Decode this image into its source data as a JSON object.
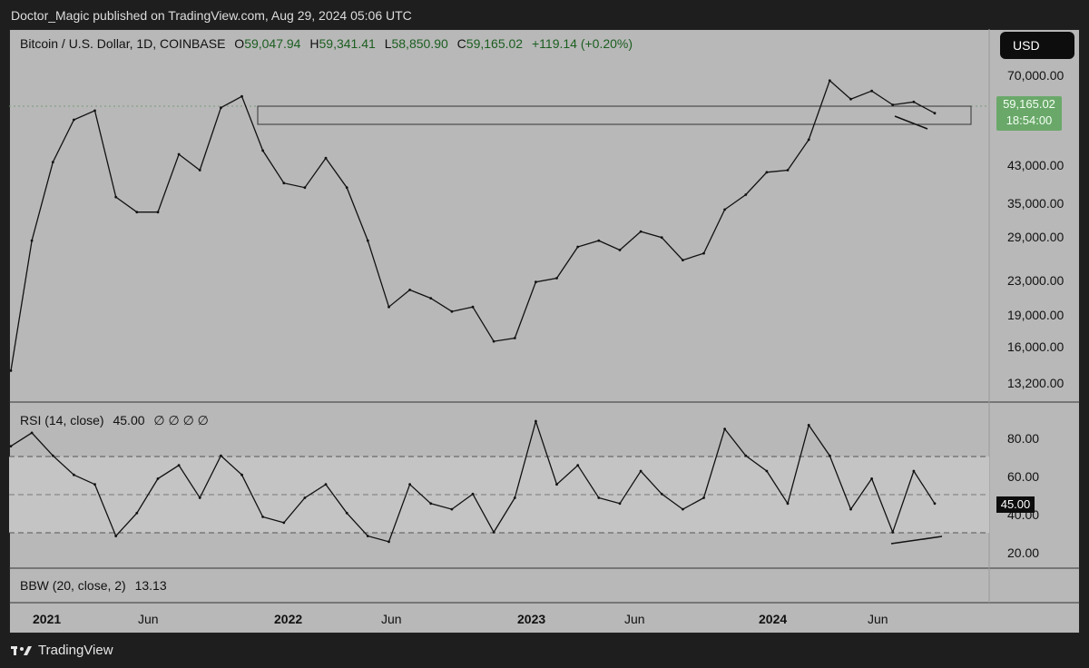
{
  "header": {
    "publisher_text": "Doctor_Magic published on TradingView.com, Aug 29, 2024 05:06 UTC"
  },
  "legend": {
    "symbol": "Bitcoin / U.S. Dollar, 1D, COINBASE",
    "o_label": "O",
    "o": "59,047.94",
    "h_label": "H",
    "h": "59,341.41",
    "l_label": "L",
    "l": "58,850.90",
    "c_label": "C",
    "c": "59,165.02",
    "change": "+119.14 (+0.20%)"
  },
  "currency_button": "USD",
  "price_tag": {
    "price": "59,165.02",
    "countdown": "18:54:00"
  },
  "price_axis": [
    "70,000.00",
    "43,000.00",
    "35,000.00",
    "29,000.00",
    "23,000.00",
    "19,000.00",
    "16,000.00",
    "13,200.00"
  ],
  "rsi": {
    "legend": "RSI (14, close)",
    "value": "45.00",
    "na": "∅ ∅ ∅ ∅",
    "axis": [
      "80.00",
      "60.00",
      "40.00",
      "20.00"
    ],
    "tag": "45.00"
  },
  "bbw": {
    "legend": "BBW (20, close, 2)",
    "value": "13.13"
  },
  "time_axis": [
    {
      "label": "2021",
      "year": true
    },
    {
      "label": "Jun",
      "year": false
    },
    {
      "label": "2022",
      "year": true
    },
    {
      "label": "Jun",
      "year": false
    },
    {
      "label": "2023",
      "year": true
    },
    {
      "label": "Jun",
      "year": false
    },
    {
      "label": "2024",
      "year": true
    },
    {
      "label": "Jun",
      "year": false
    }
  ],
  "footer": {
    "brand": "TradingView"
  },
  "colors": {
    "background": "#b8b8b8",
    "line": "#111111",
    "up_tag": "#6aa86a"
  },
  "chart_data": [
    {
      "type": "line",
      "x": [
        "2020-12",
        "2021-01",
        "2021-02",
        "2021-03",
        "2021-04",
        "2021-05",
        "2021-06",
        "2021-07",
        "2021-08",
        "2021-09",
        "2021-10",
        "2021-11",
        "2021-12",
        "2022-01",
        "2022-02",
        "2022-03",
        "2022-04",
        "2022-05",
        "2022-06",
        "2022-07",
        "2022-08",
        "2022-09",
        "2022-10",
        "2022-11",
        "2022-12",
        "2023-01",
        "2023-02",
        "2023-03",
        "2023-04",
        "2023-05",
        "2023-06",
        "2023-07",
        "2023-08",
        "2023-09",
        "2023-10",
        "2023-11",
        "2023-12",
        "2024-01",
        "2024-02",
        "2024-03",
        "2024-04",
        "2024-05",
        "2024-06",
        "2024-07",
        "2024-08"
      ],
      "series": [
        {
          "values": [
            14000,
            29000,
            45000,
            57000,
            60000,
            37000,
            34000,
            34000,
            47000,
            43000,
            61000,
            65000,
            48000,
            40000,
            39000,
            46000,
            39000,
            29000,
            20000,
            22000,
            21000,
            19500,
            20000,
            16500,
            16800,
            23000,
            23500,
            28000,
            29000,
            27500,
            30500,
            29500,
            26000,
            27000,
            34500,
            37500,
            42500,
            43000,
            51000,
            71000,
            64000,
            67000,
            62000,
            63000,
            59165.02
          ]
        }
      ],
      "ylim": [
        13200,
        75000
      ]
    },
    {
      "type": "line",
      "x": [
        "2020-12",
        "2021-01",
        "2021-02",
        "2021-03",
        "2021-04",
        "2021-05",
        "2021-06",
        "2021-07",
        "2021-08",
        "2021-09",
        "2021-10",
        "2021-11",
        "2021-12",
        "2022-01",
        "2022-02",
        "2022-03",
        "2022-04",
        "2022-05",
        "2022-06",
        "2022-07",
        "2022-08",
        "2022-09",
        "2022-10",
        "2022-11",
        "2022-12",
        "2023-01",
        "2023-02",
        "2023-03",
        "2023-04",
        "2023-05",
        "2023-06",
        "2023-07",
        "2023-08",
        "2023-09",
        "2023-10",
        "2023-11",
        "2023-12",
        "2024-01",
        "2024-02",
        "2024-03",
        "2024-04",
        "2024-05",
        "2024-06",
        "2024-07",
        "2024-08"
      ],
      "series": [
        {
          "values": [
            75,
            82,
            70,
            60,
            55,
            28,
            40,
            58,
            65,
            48,
            70,
            60,
            38,
            35,
            48,
            55,
            40,
            28,
            25,
            55,
            45,
            42,
            50,
            30,
            48,
            88,
            55,
            65,
            48,
            45,
            62,
            50,
            42,
            48,
            84,
            70,
            62,
            45,
            86,
            70,
            42,
            58,
            30,
            62,
            45
          ]
        }
      ],
      "ylim": [
        15,
        90
      ],
      "reference_lines": [
        70,
        50,
        30
      ]
    }
  ]
}
